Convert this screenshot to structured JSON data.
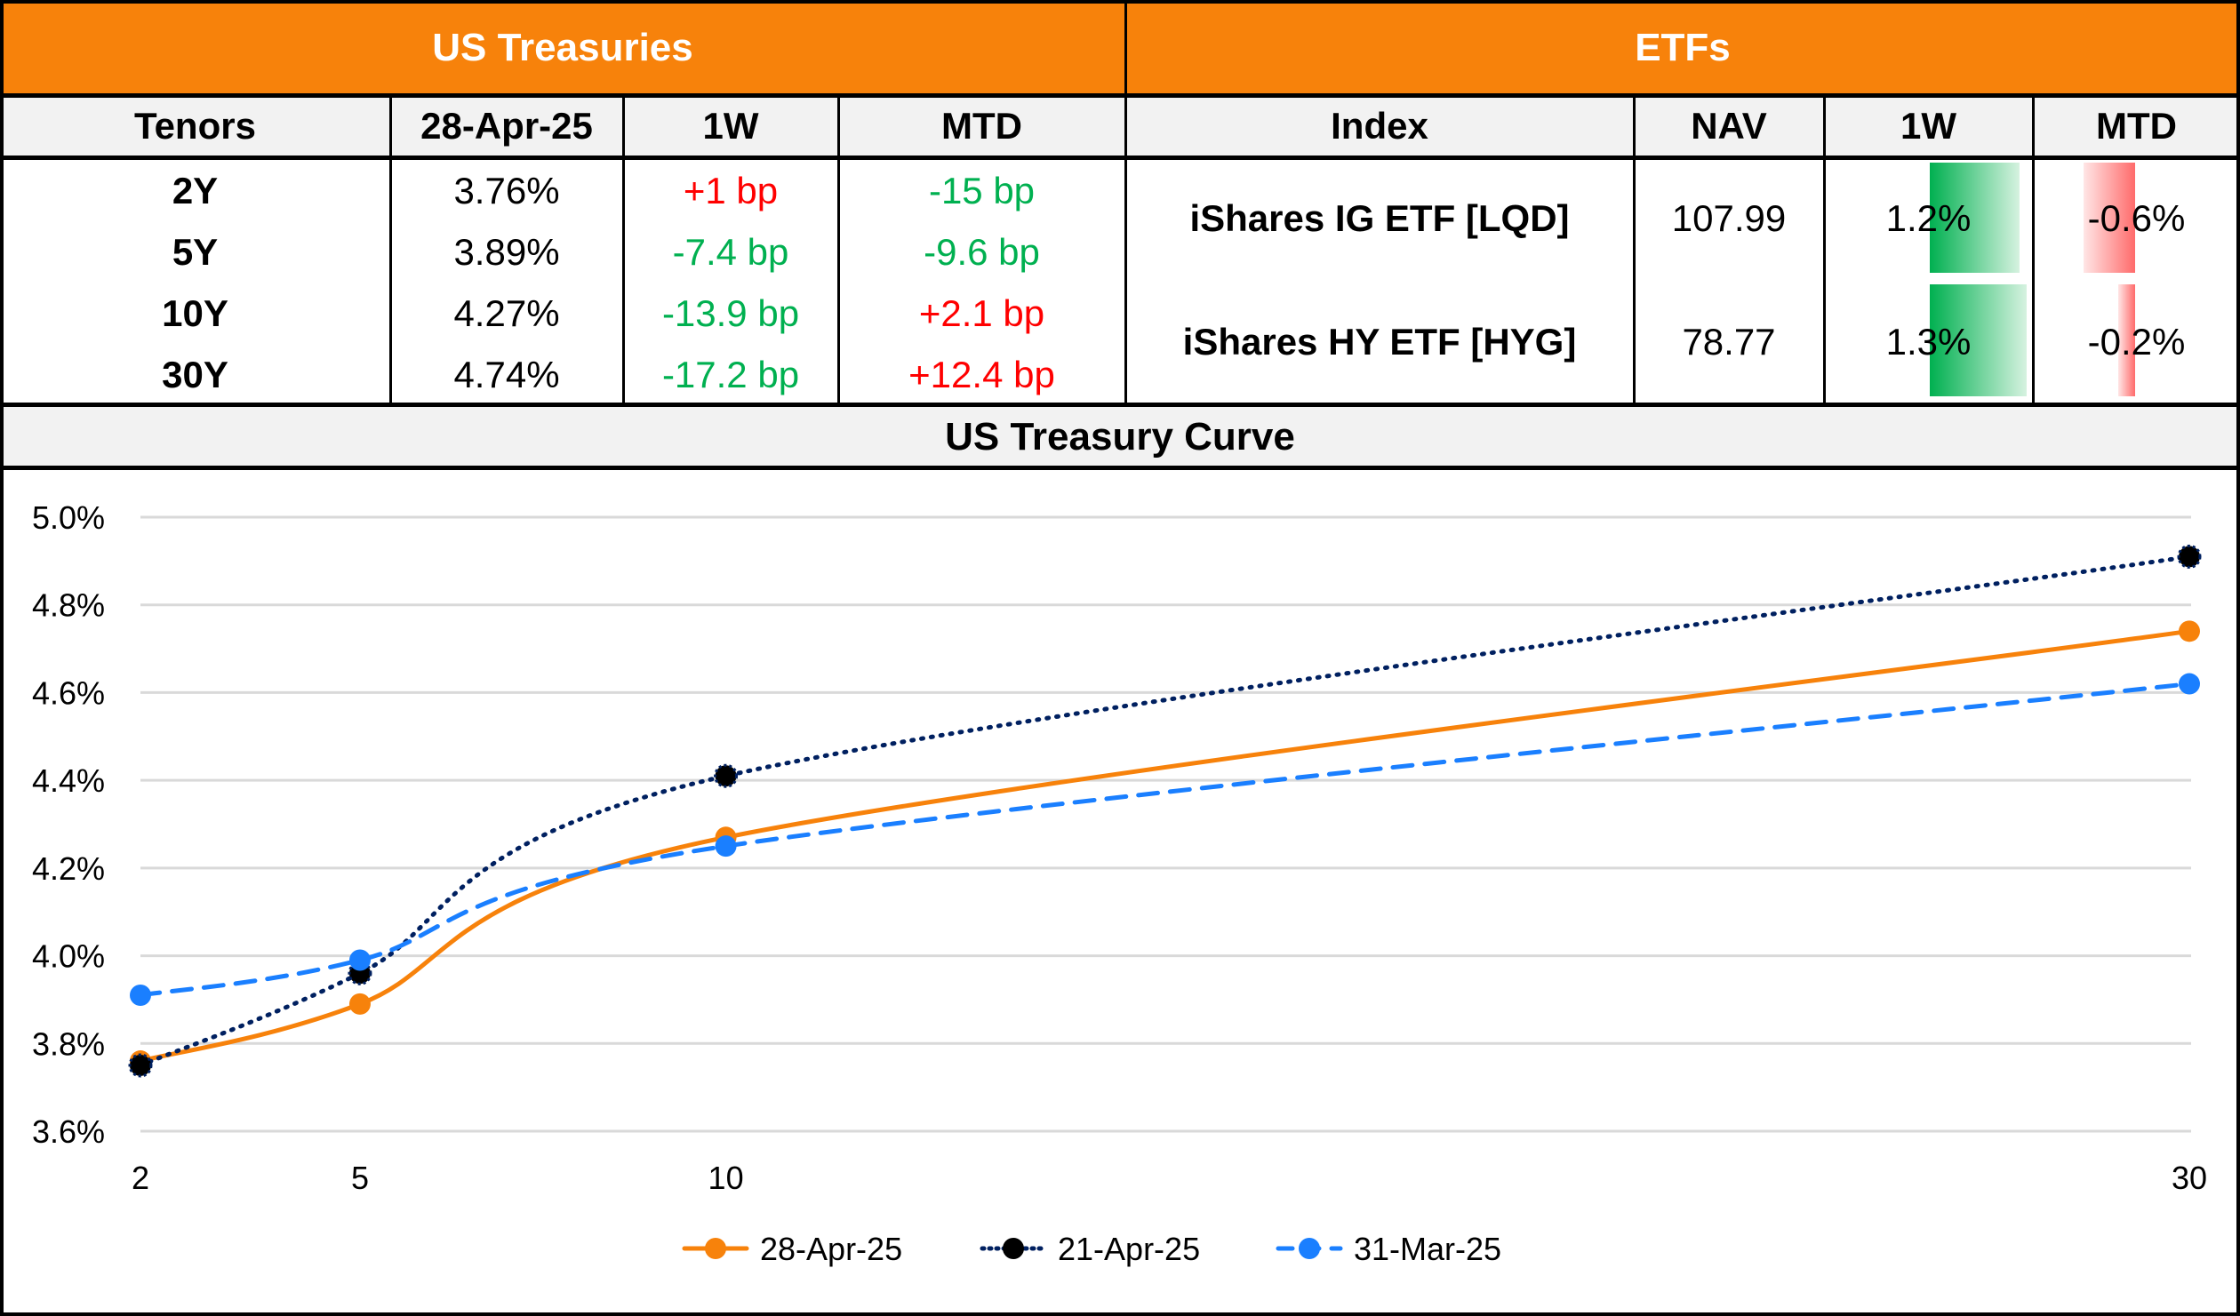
{
  "treasuries": {
    "title": "US Treasuries",
    "columns": [
      "Tenors",
      "28-Apr-25",
      "1W",
      "MTD"
    ],
    "rows": [
      {
        "tenor": "2Y",
        "yield": "3.76%",
        "w1": "+1 bp",
        "w1_sign": "pos",
        "mtd": "-15 bp",
        "mtd_sign": "neg"
      },
      {
        "tenor": "5Y",
        "yield": "3.89%",
        "w1": "-7.4 bp",
        "w1_sign": "neg",
        "mtd": "-9.6 bp",
        "mtd_sign": "neg"
      },
      {
        "tenor": "10Y",
        "yield": "4.27%",
        "w1": "-13.9 bp",
        "w1_sign": "neg",
        "mtd": "+2.1 bp",
        "mtd_sign": "pos"
      },
      {
        "tenor": "30Y",
        "yield": "4.74%",
        "w1": "-17.2 bp",
        "w1_sign": "neg",
        "mtd": "+12.4 bp",
        "mtd_sign": "pos"
      }
    ]
  },
  "etfs": {
    "title": "ETFs",
    "columns": [
      "Index",
      "NAV",
      "1W",
      "MTD"
    ],
    "rows": [
      {
        "index": "iShares IG ETF [LQD]",
        "nav": "107.99",
        "w1": "1.2%",
        "w1_value": 1.2,
        "mtd": "-0.6%",
        "mtd_value": -0.6
      },
      {
        "index": "iShares HY ETF [HYG]",
        "nav": "78.77",
        "w1": "1.3%",
        "w1_value": 1.3,
        "mtd": "-0.2%",
        "mtd_value": -0.2
      }
    ]
  },
  "colors": {
    "header_orange": "#f7820b",
    "positive_red": "#ff0000",
    "negative_green": "#00b050",
    "bar_green": "#00b050",
    "bar_red": "#ff6b6b"
  },
  "chart_data": {
    "type": "line",
    "title": "US Treasury Curve",
    "xlabel": "",
    "ylabel": "",
    "x": [
      2,
      5,
      10,
      30
    ],
    "x_tick_labels": [
      "2",
      "5",
      "10",
      "30"
    ],
    "xlim": [
      2,
      30
    ],
    "ylim": [
      3.6,
      5.0
    ],
    "y_ticks": [
      3.6,
      3.8,
      4.0,
      4.2,
      4.4,
      4.6,
      4.8,
      5.0
    ],
    "y_tick_labels": [
      "3.6%",
      "3.8%",
      "4.0%",
      "4.2%",
      "4.4%",
      "4.6%",
      "4.8%",
      "5.0%"
    ],
    "grid": true,
    "legend_position": "bottom",
    "series": [
      {
        "name": "28-Apr-25",
        "values": [
          3.76,
          3.89,
          4.27,
          4.74
        ],
        "color": "#f7820b",
        "style": "solid"
      },
      {
        "name": "21-Apr-25",
        "values": [
          3.75,
          3.96,
          4.41,
          4.91
        ],
        "color": "#002060",
        "marker_color": "#000000",
        "style": "dotted"
      },
      {
        "name": "31-Mar-25",
        "values": [
          3.91,
          3.99,
          4.25,
          4.62
        ],
        "color": "#1a7fff",
        "style": "dashed"
      }
    ]
  }
}
